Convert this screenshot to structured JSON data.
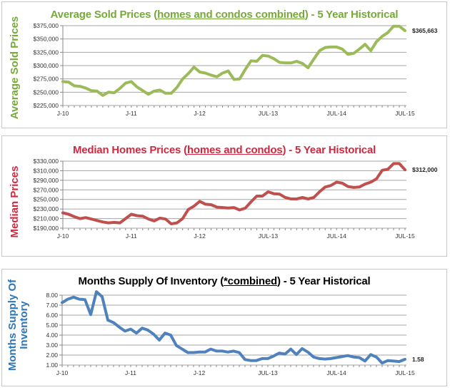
{
  "chart_data": [
    {
      "type": "line",
      "title_pre": "Average Sold Prices (",
      "title_underlined": "homes and condos combined",
      "title_post": ") - 5 Year Historical",
      "ylabel": "Average Sold Prices",
      "ylim": [
        225000,
        375000
      ],
      "yticks": [
        225000,
        250000,
        275000,
        300000,
        325000,
        350000,
        375000
      ],
      "ytick_labels": [
        "$225,000",
        "$250,000",
        "$275,000",
        "$300,000",
        "$325,000",
        "$350,000",
        "$375,000"
      ],
      "xtick_labels": [
        {
          "index": 0,
          "label": "J-10"
        },
        {
          "index": 12,
          "label": "J-11"
        },
        {
          "index": 24,
          "label": "J-12"
        },
        {
          "index": 36,
          "label": "JUL-13"
        },
        {
          "index": 48,
          "label": "JUL-14"
        },
        {
          "index": 60,
          "label": "JUL-15"
        }
      ],
      "grid": true,
      "end_label": "$365,663",
      "color": "#9bbb59",
      "title_color": "#77a83a",
      "values": [
        270000,
        269000,
        262000,
        261000,
        258000,
        253000,
        252000,
        244000,
        250000,
        249000,
        257000,
        267000,
        270000,
        260000,
        253000,
        246000,
        252000,
        254000,
        248000,
        248000,
        259000,
        275000,
        285000,
        297000,
        288000,
        286000,
        282000,
        279000,
        286000,
        290000,
        274000,
        275000,
        293000,
        309000,
        308000,
        319000,
        318000,
        313000,
        306000,
        305000,
        305000,
        308000,
        304000,
        296000,
        312000,
        328000,
        334000,
        335000,
        335000,
        331000,
        321000,
        323000,
        331000,
        340000,
        328000,
        345000,
        355000,
        362000,
        374000,
        374000,
        365663
      ]
    },
    {
      "type": "line",
      "title_pre": "Median Homes Prices (",
      "title_underlined": "homes and condos",
      "title_post": ") - 5 Year Historical",
      "ylabel": "Median Prices",
      "ylim": [
        190000,
        330000
      ],
      "yticks": [
        190000,
        210000,
        230000,
        250000,
        270000,
        290000,
        310000,
        330000
      ],
      "ytick_labels": [
        "$190,000",
        "$210,000",
        "$230,000",
        "$250,000",
        "$270,000",
        "$290,000",
        "$310,000",
        "$330,000"
      ],
      "xtick_labels": [
        {
          "index": 0,
          "label": "J-10"
        },
        {
          "index": 12,
          "label": "J-11"
        },
        {
          "index": 24,
          "label": "J-12"
        },
        {
          "index": 36,
          "label": "JUL-13"
        },
        {
          "index": 48,
          "label": "JUL-14"
        },
        {
          "index": 60,
          "label": "JUL-15"
        }
      ],
      "grid": true,
      "end_label": "$312,000",
      "color": "#c0504d",
      "title_color": "#d0283f",
      "values": [
        222000,
        219000,
        214000,
        210000,
        212000,
        209000,
        206000,
        203000,
        201000,
        202000,
        201000,
        210000,
        219000,
        216000,
        215000,
        209000,
        205000,
        211000,
        209000,
        199000,
        201000,
        210000,
        229000,
        236000,
        246000,
        240000,
        239000,
        234000,
        233000,
        232000,
        233000,
        228000,
        232000,
        245000,
        257000,
        257000,
        266000,
        262000,
        261000,
        254000,
        251000,
        251000,
        254000,
        251000,
        254000,
        266000,
        276000,
        279000,
        286000,
        284000,
        277000,
        275000,
        276000,
        282000,
        286000,
        293000,
        311000,
        313000,
        325000,
        325000,
        312000
      ]
    },
    {
      "type": "line",
      "title_pre": "Months Supply Of Inventory (",
      "title_underlined": "*combined",
      "title_post": ") - 5 Year Historical",
      "ylabel": "Months Supply Of Inventory",
      "ylabel_line1": "Months Supply Of",
      "ylabel_line2": "Inventory",
      "ylim": [
        1,
        8
      ],
      "yticks": [
        1,
        2,
        3,
        4,
        5,
        6,
        7,
        8
      ],
      "ytick_labels": [
        "1.00",
        "2.00",
        "3.00",
        "4.00",
        "5.00",
        "6.00",
        "7.00",
        "8.00"
      ],
      "xtick_labels": [
        {
          "index": 0,
          "label": "J-10"
        },
        {
          "index": 12,
          "label": "J-11"
        },
        {
          "index": 24,
          "label": "J-12"
        },
        {
          "index": 36,
          "label": "JUL-13"
        },
        {
          "index": 48,
          "label": "JUL-14"
        },
        {
          "index": 60,
          "label": "JUL-15"
        }
      ],
      "grid": true,
      "end_label": "1.58",
      "color": "#4f81bd",
      "title_color": "#000000",
      "ylabel_color": "#2e75b6",
      "values": [
        7.25,
        7.6,
        7.8,
        7.6,
        7.55,
        6.05,
        8.35,
        7.85,
        5.5,
        5.25,
        4.8,
        4.4,
        4.6,
        4.2,
        4.7,
        4.5,
        4.1,
        3.5,
        4.2,
        4.0,
        2.95,
        2.6,
        2.25,
        2.25,
        2.3,
        2.3,
        2.6,
        2.4,
        2.4,
        2.3,
        2.4,
        2.25,
        1.55,
        1.45,
        1.45,
        1.65,
        1.65,
        1.9,
        2.2,
        2.1,
        2.6,
        2.05,
        2.65,
        2.3,
        1.8,
        1.65,
        1.6,
        1.65,
        1.75,
        1.85,
        1.95,
        1.8,
        1.75,
        1.4,
        2.05,
        1.8,
        1.2,
        1.45,
        1.4,
        1.35,
        1.58
      ]
    }
  ]
}
